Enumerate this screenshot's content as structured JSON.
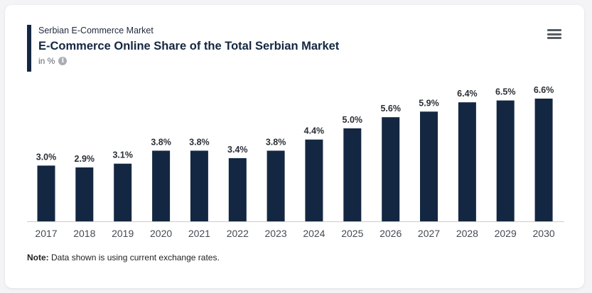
{
  "header": {
    "kicker": "Serbian E-Commerce Market",
    "title": "E-Commerce Online Share of the Total Serbian Market",
    "unit": "in %",
    "info_icon": "info-icon",
    "menu_icon": "hamburger-menu-icon"
  },
  "footer": {
    "note_label": "Note:",
    "note_text": " Data shown is using current exchange rates."
  },
  "colors": {
    "bar": "#142742",
    "label": "#2b2f36",
    "axis": "#444a54"
  },
  "chart_data": {
    "type": "bar",
    "title": "E-Commerce Online Share of the Total Serbian Market",
    "subtitle": "Serbian E-Commerce Market",
    "ylabel": "in %",
    "xlabel": "",
    "categories": [
      "2017",
      "2018",
      "2019",
      "2020",
      "2021",
      "2022",
      "2023",
      "2024",
      "2025",
      "2026",
      "2027",
      "2028",
      "2029",
      "2030"
    ],
    "values": [
      3.0,
      2.9,
      3.1,
      3.8,
      3.8,
      3.4,
      3.8,
      4.4,
      5.0,
      5.6,
      5.9,
      6.4,
      6.5,
      6.6
    ],
    "value_labels": [
      "3.0%",
      "2.9%",
      "3.1%",
      "3.8%",
      "3.8%",
      "3.4%",
      "3.8%",
      "4.4%",
      "5.0%",
      "5.6%",
      "5.9%",
      "6.4%",
      "6.5%",
      "6.6%"
    ],
    "ylim": [
      0,
      6.6
    ],
    "grid": false
  }
}
